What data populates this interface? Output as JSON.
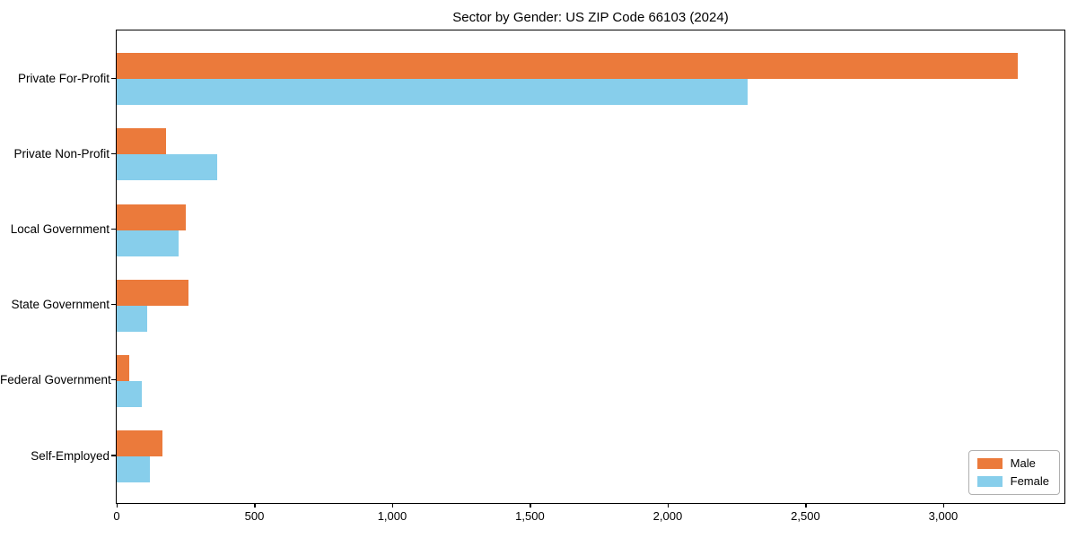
{
  "title": "Sector by Gender: US ZIP Code 66103 (2024)",
  "chart_data": {
    "type": "bar",
    "orientation": "horizontal",
    "title": "Sector by Gender: US ZIP Code 66103 (2024)",
    "categories": [
      "Private For-Profit",
      "Private Non-Profit",
      "Local Government",
      "State Government",
      "Federal Government",
      "Self-Employed"
    ],
    "series": [
      {
        "name": "Male",
        "color": "#EB7A3B",
        "values": [
          3270,
          180,
          250,
          260,
          45,
          165
        ]
      },
      {
        "name": "Female",
        "color": "#87CEEB",
        "values": [
          2290,
          365,
          225,
          110,
          90,
          120
        ]
      }
    ],
    "xlabel": "",
    "ylabel": "",
    "xlim": [
      0,
      3440
    ],
    "xticks": [
      0,
      500,
      1000,
      1500,
      2000,
      2500,
      3000
    ],
    "xtick_labels": [
      "0",
      "500",
      "1,000",
      "1,500",
      "2,000",
      "2,500",
      "3,000"
    ],
    "grid": false,
    "legend_position": "lower right",
    "legend_items": [
      {
        "label": "Male",
        "color": "#EB7A3B"
      },
      {
        "label": "Female",
        "color": "#87CEEB"
      }
    ]
  }
}
